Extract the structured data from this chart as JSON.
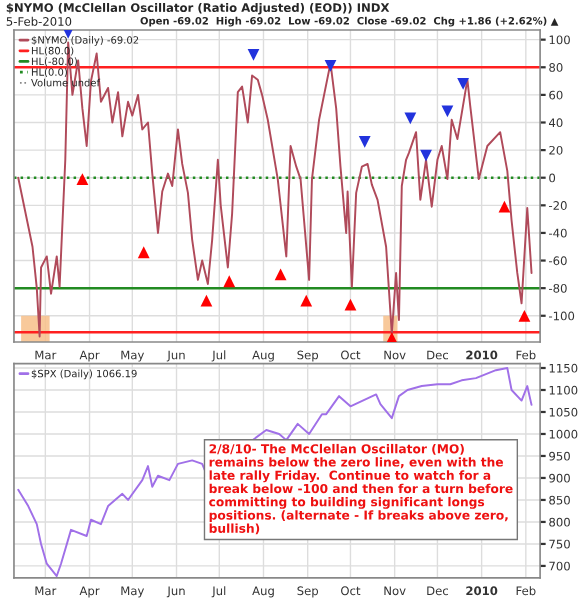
{
  "chart_data": [
    {
      "type": "line",
      "title": "$NYMO (McClellan Oscillator (Ratio Adjusted) (EOD)) INDX",
      "subtitle": "5-Feb-2010",
      "annotations": [
        "Open -69.02  High -69.02  Low -69.02  Close -69.02  Chg +1.86 (+2.62%) ▲",
        "Volume undef"
      ],
      "series": [
        {
          "name": "$NYMO (Daily) -69.02",
          "color": "#b04a5a",
          "x": [
            "2009-02-10",
            "2009-02-20",
            "2009-02-23",
            "2009-02-25",
            "2009-02-26",
            "2009-03-02",
            "2009-03-05",
            "2009-03-09",
            "2009-03-11",
            "2009-03-15",
            "2009-03-17",
            "2009-03-20",
            "2009-03-24",
            "2009-03-27",
            "2009-03-30",
            "2009-04-02",
            "2009-04-06",
            "2009-04-09",
            "2009-04-14",
            "2009-04-17",
            "2009-04-21",
            "2009-04-24",
            "2009-04-28",
            "2009-05-01",
            "2009-05-05",
            "2009-05-08",
            "2009-05-12",
            "2009-05-15",
            "2009-05-19",
            "2009-05-22",
            "2009-05-26",
            "2009-05-29",
            "2009-06-02",
            "2009-06-05",
            "2009-06-09",
            "2009-06-12",
            "2009-06-16",
            "2009-06-19",
            "2009-06-23",
            "2009-06-26",
            "2009-06-30",
            "2009-07-02",
            "2009-07-07",
            "2009-07-10",
            "2009-07-14",
            "2009-07-17",
            "2009-07-21",
            "2009-07-24",
            "2009-07-28",
            "2009-07-31",
            "2009-08-04",
            "2009-08-11",
            "2009-08-17",
            "2009-08-20",
            "2009-08-24",
            "2009-08-27",
            "2009-09-02",
            "2009-09-04",
            "2009-09-09",
            "2009-09-17",
            "2009-09-21",
            "2009-09-24",
            "2009-09-28",
            "2009-09-29",
            "2009-10-02",
            "2009-10-05",
            "2009-10-09",
            "2009-10-13",
            "2009-10-16",
            "2009-10-20",
            "2009-10-26",
            "2009-10-30",
            "2009-11-02",
            "2009-11-04",
            "2009-11-06",
            "2009-11-09",
            "2009-11-11",
            "2009-11-16",
            "2009-11-19",
            "2009-11-23",
            "2009-11-27",
            "2009-12-01",
            "2009-12-04",
            "2009-12-08",
            "2009-12-11",
            "2009-12-15",
            "2009-12-22",
            "2009-12-24",
            "2009-12-30",
            "2010-01-05",
            "2010-01-14",
            "2010-01-19",
            "2010-01-22",
            "2010-01-26",
            "2010-01-29",
            "2010-02-02",
            "2010-02-05"
          ],
          "values": [
            0,
            -50,
            -80,
            -115,
            -65,
            -57,
            -84,
            -57,
            -79,
            13,
            98,
            60,
            85,
            50,
            23,
            70,
            90,
            55,
            65,
            40,
            62,
            30,
            55,
            45,
            60,
            35,
            40,
            3,
            -40,
            -10,
            3,
            -6,
            35,
            10,
            -11,
            -45,
            -74,
            -60,
            -77,
            -45,
            13,
            -20,
            -65,
            -26,
            62,
            66,
            40,
            74,
            71,
            60,
            42,
            -1,
            -57,
            23,
            8,
            -1,
            -74,
            -1,
            42,
            83,
            50,
            8,
            -40,
            -10,
            -79,
            -11,
            8,
            10,
            -5,
            -16,
            -50,
            -113,
            -69,
            -103,
            -6,
            13,
            18,
            33,
            -16,
            13,
            -21,
            13,
            23,
            -1,
            42,
            28,
            71,
            52,
            -1,
            23,
            33,
            5,
            -31,
            -69,
            -91,
            -22,
            -69.02
          ]
        },
        {
          "type": "scatter",
          "color": "#ff0000",
          "marker": "triangle",
          "x": [
            "2009-03-27",
            "2009-05-09",
            "2009-06-22",
            "2009-07-08",
            "2009-08-13",
            "2009-08-31",
            "2009-10-01",
            "2009-10-30",
            "2010-01-17",
            "2010-01-31"
          ],
          "values": [
            -1,
            -54,
            -89,
            -75,
            -70,
            -89,
            -92,
            -116,
            -21,
            -100
          ]
        },
        {
          "type": "scatter",
          "color": "#2233dd",
          "marker": "triangle_down",
          "x": [
            "2009-03-17",
            "2009-07-25",
            "2009-09-17",
            "2009-10-11",
            "2009-11-12",
            "2009-11-23",
            "2009-12-08",
            "2009-12-19"
          ],
          "values": [
            105,
            89,
            81,
            26,
            43,
            16,
            48,
            68
          ]
        }
      ],
      "ref_lines": [
        {
          "axis": "y",
          "value": 80,
          "label": "HL(80.0)",
          "color": "#ff2020",
          "line_style": "solid"
        },
        {
          "axis": "y",
          "value": -80,
          "label": "HL(-80.0)",
          "color": "#228b22",
          "line_style": "solid"
        },
        {
          "axis": "y",
          "value": 0,
          "label": "HL(0.0)",
          "color": "#228b22",
          "line_style": "dotted"
        },
        {
          "axis": "y",
          "value": -112,
          "color": "#ff2020",
          "line_style": "solid"
        }
      ],
      "bands": [
        {
          "axis": "x",
          "from": "2009-02-12",
          "to": "2009-03-04",
          "color": "#f7c08a"
        },
        {
          "axis": "x",
          "from": "2009-10-24",
          "to": "2009-11-03",
          "color": "#f7c08a"
        }
      ],
      "xlim": [
        "2009-02-07",
        "2010-02-11"
      ],
      "ylim": [
        -119,
        107
      ],
      "xticks": [
        {
          "value": "2009-03-01",
          "label": "Mar"
        },
        {
          "value": "2009-04-01",
          "label": "Apr"
        },
        {
          "value": "2009-05-01",
          "label": "May"
        },
        {
          "value": "2009-06-01",
          "label": "Jun"
        },
        {
          "value": "2009-07-01",
          "label": "Jul"
        },
        {
          "value": "2009-08-01",
          "label": "Aug"
        },
        {
          "value": "2009-09-01",
          "label": "Sep"
        },
        {
          "value": "2009-10-01",
          "label": "Oct"
        },
        {
          "value": "2009-11-01",
          "label": "Nov"
        },
        {
          "value": "2009-12-01",
          "label": "Dec"
        },
        {
          "value": "2010-01-01",
          "label": "2010"
        },
        {
          "value": "2010-02-01",
          "label": "Feb"
        }
      ],
      "yticks": [
        -100,
        -80,
        -60,
        -40,
        -20,
        0,
        20,
        40,
        60,
        80,
        100
      ],
      "grid": true,
      "legend": "top left",
      "marker": "none",
      "line_style": "solid"
    },
    {
      "type": "line",
      "annotations": [
        "2/8/10- The McClellan Oscillator (MO)\nremains below the zero line, even with the\nlate rally Friday.  Continue to watch for a\nbreak below -100 and then for a turn before\ncommitting to building significant longs\npositions. (alternate - If breaks above zero,\nbullish)"
      ],
      "series": [
        {
          "name": "$SPX (Daily) 1066.19",
          "color": "#a070e8",
          "x": [
            "2009-02-10",
            "2009-02-17",
            "2009-02-23",
            "2009-02-26",
            "2009-03-02",
            "2009-03-09",
            "2009-03-12",
            "2009-03-19",
            "2009-03-30",
            "2009-04-02",
            "2009-04-09",
            "2009-04-14",
            "2009-04-24",
            "2009-04-28",
            "2009-05-08",
            "2009-05-12",
            "2009-05-15",
            "2009-05-19",
            "2009-05-27",
            "2009-06-02",
            "2009-06-12",
            "2009-06-19",
            "2009-06-22",
            "2009-07-01",
            "2009-07-10",
            "2009-07-17",
            "2009-07-23",
            "2009-08-03",
            "2009-08-12",
            "2009-08-17",
            "2009-08-25",
            "2009-09-02",
            "2009-09-11",
            "2009-09-14",
            "2009-09-23",
            "2009-10-01",
            "2009-10-19",
            "2009-10-22",
            "2009-10-30",
            "2009-11-04",
            "2009-11-10",
            "2009-11-20",
            "2009-12-01",
            "2009-12-10",
            "2009-12-18",
            "2009-12-28",
            "2010-01-11",
            "2010-01-19",
            "2010-01-22",
            "2010-01-29",
            "2010-02-02",
            "2010-02-05"
          ],
          "values": [
            873,
            836,
            795,
            750,
            705,
            677,
            705,
            782,
            768,
            805,
            795,
            836,
            864,
            850,
            895,
            927,
            880,
            905,
            895,
            932,
            940,
            932,
            909,
            null,
            null,
            null,
            null,
            1009,
            1000,
            986,
            1023,
            1000,
            1045,
            1045,
            1086,
            1063,
            1090,
            1068,
            1036,
            1086,
            1100,
            1109,
            1113,
            1113,
            1122,
            1127,
            1145,
            1150,
            1100,
            1076,
            1109,
            1066.19
          ]
        }
      ],
      "xlim": [
        "2009-02-07",
        "2010-02-11"
      ],
      "ylim": [
        673,
        1160
      ],
      "xticks": [
        {
          "value": "2009-03-01",
          "label": "Mar"
        },
        {
          "value": "2009-04-01",
          "label": "Apr"
        },
        {
          "value": "2009-05-01",
          "label": "May"
        },
        {
          "value": "2009-06-01",
          "label": "Jun"
        },
        {
          "value": "2009-07-01",
          "label": "Jul"
        },
        {
          "value": "2009-08-01",
          "label": "Aug"
        },
        {
          "value": "2009-09-01",
          "label": "Sep"
        },
        {
          "value": "2009-10-01",
          "label": "Oct"
        },
        {
          "value": "2009-11-01",
          "label": "Nov"
        },
        {
          "value": "2009-12-01",
          "label": "Dec"
        },
        {
          "value": "2010-01-01",
          "label": "2010"
        },
        {
          "value": "2010-02-01",
          "label": "Feb"
        }
      ],
      "yticks": [
        700,
        750,
        800,
        850,
        900,
        950,
        1000,
        1050,
        1100,
        1150
      ],
      "grid": true,
      "legend": "top left",
      "marker": "none",
      "line_style": "solid"
    }
  ]
}
